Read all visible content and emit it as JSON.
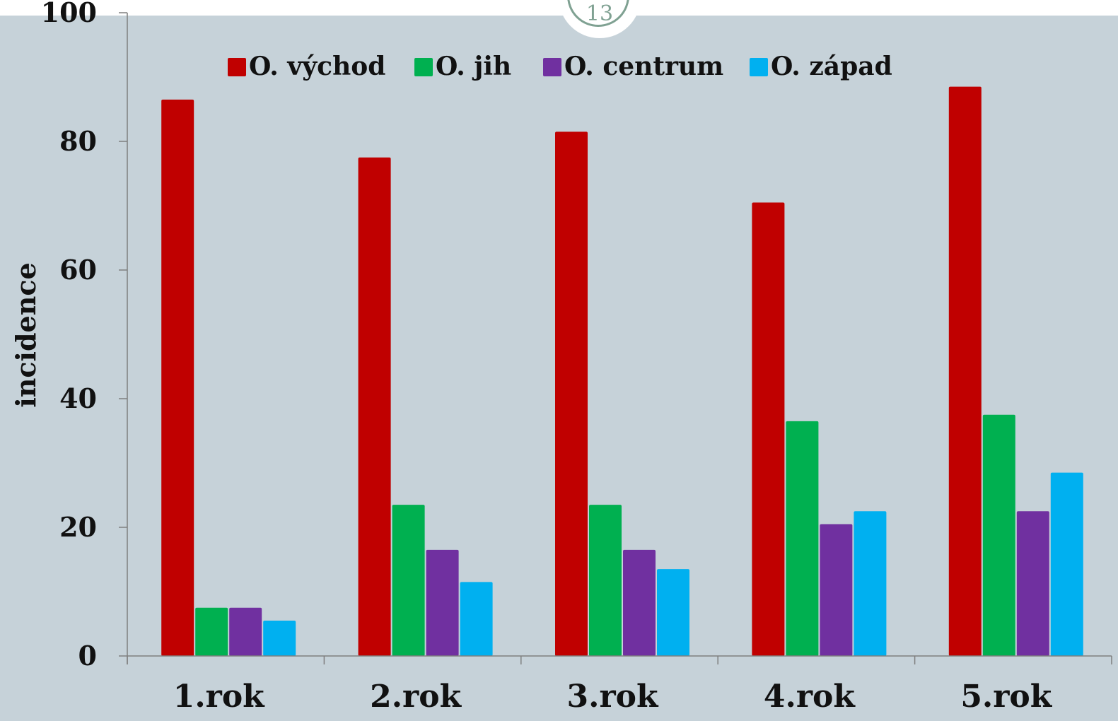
{
  "page": {
    "number": "13"
  },
  "chart_data": {
    "type": "bar",
    "categories": [
      "1.rok",
      "2.rok",
      "3.rok",
      "4.rok",
      "5.rok"
    ],
    "series": [
      {
        "name": "O. východ",
        "color": "#c00000",
        "values": [
          86.5,
          77.5,
          81.5,
          70.5,
          88.5
        ]
      },
      {
        "name": "O. jih",
        "color": "#00b050",
        "values": [
          7.5,
          23.5,
          23.5,
          36.5,
          37.5
        ]
      },
      {
        "name": "O. centrum",
        "color": "#7030a0",
        "values": [
          7.5,
          16.5,
          16.5,
          20.5,
          22.5
        ]
      },
      {
        "name": "O. západ",
        "color": "#00b0f0",
        "values": [
          5.5,
          11.5,
          13.5,
          22.5,
          28.5
        ]
      }
    ],
    "ylabel": "incidence",
    "xlabel": "",
    "ylim": [
      0,
      100
    ],
    "yticks": [
      0,
      20,
      40,
      60,
      80,
      100
    ],
    "legend_position": "top",
    "grid": false
  }
}
